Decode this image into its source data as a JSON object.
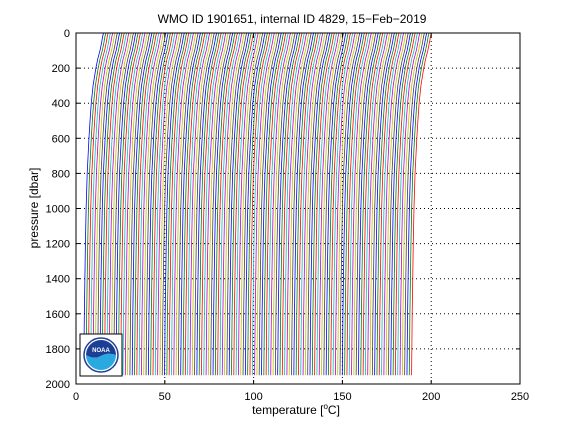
{
  "chart_data": {
    "type": "line",
    "title": "WMO ID 1901651, internal ID 4829, 15−Feb−2019",
    "xlabel_pre": "temperature [",
    "xlabel_deg": "o",
    "xlabel_post": "C]",
    "ylabel": "pressure [dbar]",
    "xlim": [
      0,
      250
    ],
    "ylim": [
      0,
      2000
    ],
    "y_reversed": true,
    "x_ticks": [
      0,
      50,
      100,
      150,
      200,
      250
    ],
    "y_ticks": [
      0,
      200,
      400,
      600,
      800,
      1000,
      1200,
      1400,
      1600,
      1800,
      2000
    ],
    "grid": "dotted",
    "profile_offset_start": 2,
    "profile_offset_step": 1.3,
    "profile_count": 143,
    "series": [
      {
        "pressure": [
          0,
          20,
          50,
          100,
          150,
          200,
          250,
          300,
          400,
          500,
          600,
          700,
          800,
          900,
          1000,
          1200,
          1400,
          1600,
          1800,
          1950
        ],
        "temperature": [
          13.5,
          13.0,
          12.5,
          11.5,
          10.2,
          9.2,
          8.4,
          7.6,
          6.6,
          5.9,
          5.3,
          4.8,
          4.3,
          4.0,
          3.7,
          3.3,
          3.0,
          2.7,
          2.5,
          2.35
        ]
      }
    ],
    "colors": [
      "#0000ff",
      "#008000",
      "#ff0000",
      "#00bfbf",
      "#bf00bf",
      "#bfbf00",
      "#404040"
    ],
    "logo": {
      "name": "noaa-logo",
      "text": "NOAA"
    }
  }
}
